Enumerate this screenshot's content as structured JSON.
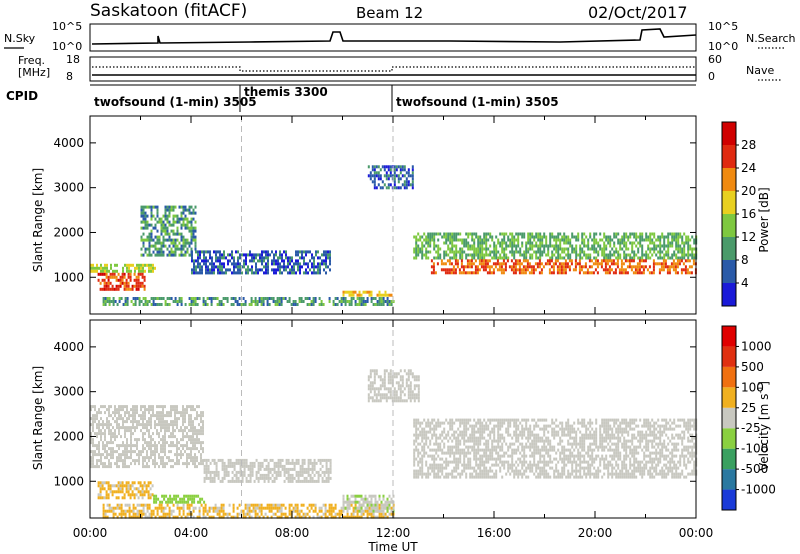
{
  "header": {
    "station": "Saskatoon (fitACF)",
    "beam": "Beam 12",
    "date": "02/Oct/2017"
  },
  "noise_panel": {
    "left_label": "N.Sky",
    "right_label": "N.Search",
    "left_ticks": [
      "10^5",
      "10^0"
    ],
    "right_ticks": [
      "10^5",
      "10^0"
    ]
  },
  "freq_panel": {
    "left_label_1": "Freq.",
    "left_label_2": "[MHz]",
    "left_ticks": [
      "18",
      "8"
    ],
    "right_ticks": [
      "60",
      "0"
    ],
    "right_label": "Nave"
  },
  "cpid": {
    "label": "CPID",
    "segments": [
      "twofsound (1-min) 3505",
      "themis 3300",
      "twofsound (1-min) 3505"
    ]
  },
  "chart_data": [
    {
      "type": "heatmap",
      "title": "Power",
      "xlabel": "Time UT",
      "ylabel": "Slant Range [km]",
      "x_ticks": [
        "00:00",
        "04:00",
        "08:00",
        "12:00",
        "16:00",
        "20:00",
        "00:00"
      ],
      "y_ticks": [
        "1000",
        "2000",
        "3000",
        "4000"
      ],
      "ylim": [
        180,
        4600
      ],
      "colorbar_label": "Power [dB]",
      "colorbar_ticks": [
        "4",
        "8",
        "12",
        "16",
        "20",
        "24",
        "28"
      ],
      "colorbar_range": [
        0,
        32
      ],
      "colors": [
        "#1a1ad8",
        "#2a5aa8",
        "#4a9a6a",
        "#7ec840",
        "#e8d020",
        "#f08a10",
        "#e02a10",
        "#d00000"
      ],
      "regions": [
        {
          "t": [
            0.0,
            2.6
          ],
          "r": [
            1100,
            1300
          ],
          "level": 16
        },
        {
          "t": [
            0.3,
            2.2
          ],
          "r": [
            700,
            1100
          ],
          "level": 26
        },
        {
          "t": [
            2.0,
            4.2
          ],
          "r": [
            1500,
            2600
          ],
          "level": 10
        },
        {
          "t": [
            4.0,
            9.5
          ],
          "r": [
            1100,
            1600
          ],
          "level": 6
        },
        {
          "t": [
            0.5,
            12.0
          ],
          "r": [
            400,
            560
          ],
          "level": 10
        },
        {
          "t": [
            10.0,
            12.0
          ],
          "r": [
            600,
            700
          ],
          "level": 20
        },
        {
          "t": [
            11.0,
            12.8
          ],
          "r": [
            3000,
            3500
          ],
          "level": 6
        },
        {
          "t": [
            12.8,
            24.0
          ],
          "r": [
            1400,
            2000
          ],
          "level": 12
        },
        {
          "t": [
            13.5,
            24.0
          ],
          "r": [
            1100,
            1400
          ],
          "level": 24
        }
      ]
    },
    {
      "type": "heatmap",
      "title": "Velocity",
      "xlabel": "Time UT",
      "ylabel": "Slant Range [km]",
      "x_ticks": [
        "00:00",
        "04:00",
        "08:00",
        "12:00",
        "16:00",
        "20:00",
        "00:00"
      ],
      "y_ticks": [
        "1000",
        "2000",
        "3000",
        "4000"
      ],
      "ylim": [
        180,
        4600
      ],
      "colorbar_label": "Velocity [m s^-1]",
      "colorbar_ticks": [
        "1000",
        "500",
        "100",
        "25",
        "-25",
        "-100",
        "-500",
        "-1000"
      ],
      "colorbar_range": [
        -1200,
        1200
      ],
      "colors": [
        "#1a3ad8",
        "#2a78a0",
        "#3aa060",
        "#8ad040",
        "#c8c8c0",
        "#f0b020",
        "#f07010",
        "#e03010",
        "#e00000"
      ],
      "regions": [
        {
          "t": [
            0.0,
            4.5
          ],
          "r": [
            1300,
            2700
          ],
          "level": 0
        },
        {
          "t": [
            0.3,
            2.5
          ],
          "r": [
            600,
            1000
          ],
          "level": 150
        },
        {
          "t": [
            2.5,
            4.5
          ],
          "r": [
            500,
            700
          ],
          "level": -300
        },
        {
          "t": [
            4.5,
            9.5
          ],
          "r": [
            1000,
            1500
          ],
          "level": 0
        },
        {
          "t": [
            0.5,
            12.0
          ],
          "r": [
            200,
            500
          ],
          "level": 150
        },
        {
          "t": [
            10.0,
            12.0
          ],
          "r": [
            300,
            700
          ],
          "level": -120
        },
        {
          "t": [
            11.0,
            13.0
          ],
          "r": [
            2800,
            3500
          ],
          "level": 0
        },
        {
          "t": [
            12.8,
            24.0
          ],
          "r": [
            1100,
            2400
          ],
          "level": 0
        }
      ]
    }
  ]
}
